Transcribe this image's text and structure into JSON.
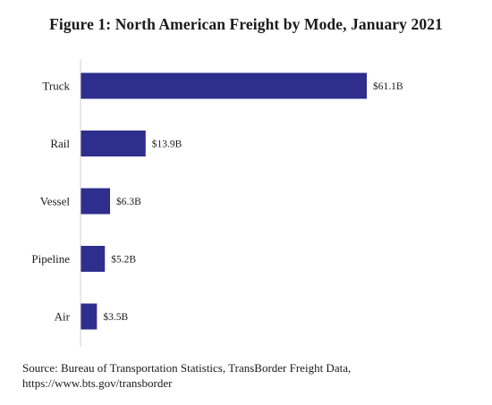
{
  "figure": {
    "title": "Figure 1: North American Freight by Mode, January 2021",
    "source_line1": "Source: Bureau of Transportation Statistics, TransBorder Freight Data,",
    "source_line2": "https://www.bts.gov/transborder"
  },
  "colors": {
    "bar": "#2e2e8c",
    "axis": "#d0d0d0"
  },
  "chart_data": {
    "type": "bar",
    "orientation": "horizontal",
    "title": "Figure 1: North American Freight by Mode, January 2021",
    "xlabel": "",
    "ylabel": "",
    "categories": [
      "Truck",
      "Rail",
      "Vessel",
      "Pipeline",
      "Air"
    ],
    "values": [
      61.1,
      13.9,
      6.3,
      5.2,
      3.5
    ],
    "value_labels": [
      "$61.1B",
      "$13.9B",
      "$6.3B",
      "$5.2B",
      "$3.5B"
    ],
    "grid": false,
    "legend": "none"
  }
}
